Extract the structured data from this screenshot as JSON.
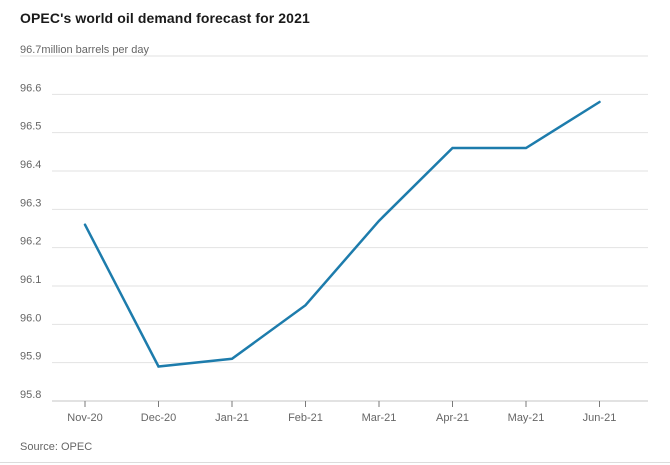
{
  "chart_data": {
    "type": "line",
    "title": "OPEC's world oil demand forecast for 2021",
    "unit_note": "million barrels per day",
    "source": "Source: OPEC",
    "categories": [
      "Nov-20",
      "Dec-20",
      "Jan-21",
      "Feb-21",
      "Mar-21",
      "Apr-21",
      "May-21",
      "Jun-21"
    ],
    "series": [
      {
        "name": "World oil demand forecast (million barrels per day)",
        "values": [
          96.26,
          95.89,
          95.91,
          96.05,
          96.27,
          96.46,
          96.46,
          96.58
        ]
      }
    ],
    "ylim": [
      95.8,
      96.7
    ],
    "y_ticks": [
      {
        "value": 96.7,
        "label": "96.7million barrels per day"
      },
      {
        "value": 96.6,
        "label": "96.6"
      },
      {
        "value": 96.5,
        "label": "96.5"
      },
      {
        "value": 96.4,
        "label": "96.4"
      },
      {
        "value": 96.3,
        "label": "96.3"
      },
      {
        "value": 96.2,
        "label": "96.2"
      },
      {
        "value": 96.1,
        "label": "96.1"
      },
      {
        "value": 96.0,
        "label": "96.0"
      },
      {
        "value": 95.9,
        "label": "95.9"
      },
      {
        "value": 95.8,
        "label": "95.8"
      }
    ],
    "grid": true,
    "legend": "none",
    "colors": {
      "line": "#1d7cac",
      "grid": "#e2e2e2",
      "axis": "#c6c6c6",
      "tick_mark": "#7a7a7a",
      "label_text": "#666666",
      "title_text": "#1a1a1a",
      "divider": "#dcdcdc"
    }
  }
}
